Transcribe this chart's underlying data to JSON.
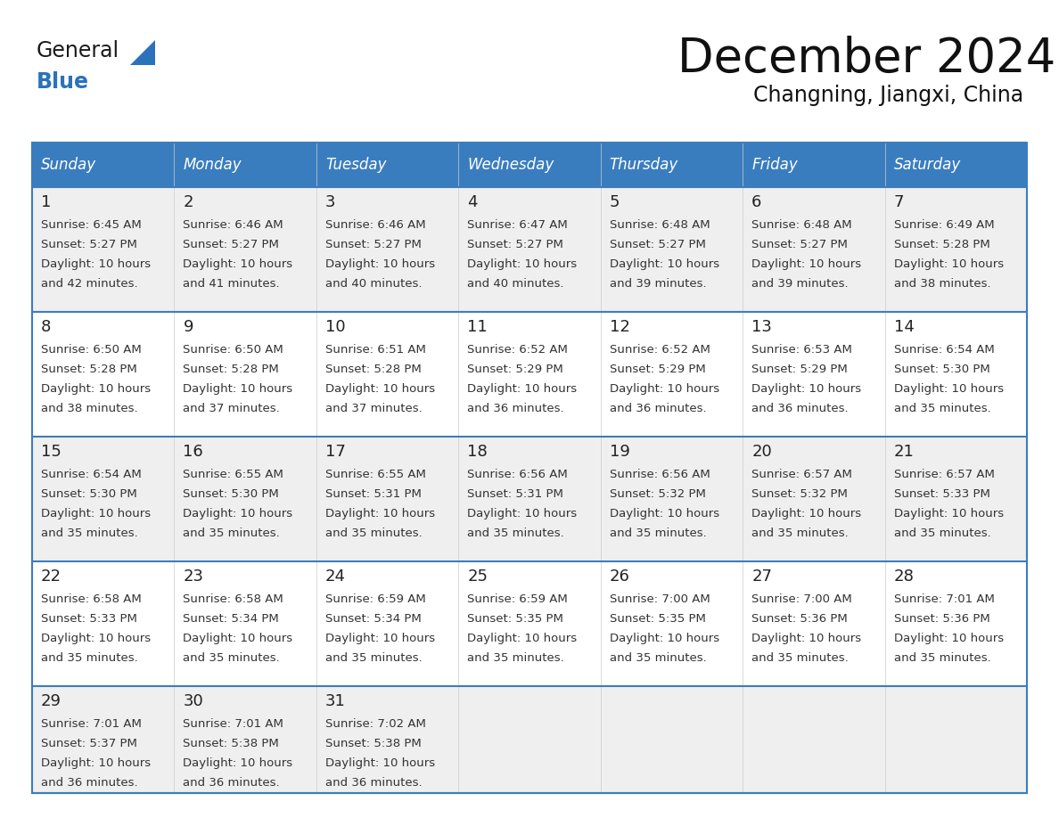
{
  "title": "December 2024",
  "subtitle": "Changning, Jiangxi, China",
  "header_bg_color": "#3A7DBF",
  "header_text_color": "#FFFFFF",
  "day_names": [
    "Sunday",
    "Monday",
    "Tuesday",
    "Wednesday",
    "Thursday",
    "Friday",
    "Saturday"
  ],
  "row_bg_odd": "#EFEFEF",
  "row_bg_even": "#FFFFFF",
  "cell_border_color": "#3A7DBF",
  "day_number_color": "#222222",
  "day_text_color": "#333333",
  "logo_general_color": "#1a1a1a",
  "logo_blue_color": "#2a72bb",
  "weeks": [
    [
      {
        "day": 1,
        "sunrise": "6:45 AM",
        "sunset": "5:27 PM",
        "daylight_line1": "10 hours",
        "daylight_line2": "and 42 minutes."
      },
      {
        "day": 2,
        "sunrise": "6:46 AM",
        "sunset": "5:27 PM",
        "daylight_line1": "10 hours",
        "daylight_line2": "and 41 minutes."
      },
      {
        "day": 3,
        "sunrise": "6:46 AM",
        "sunset": "5:27 PM",
        "daylight_line1": "10 hours",
        "daylight_line2": "and 40 minutes."
      },
      {
        "day": 4,
        "sunrise": "6:47 AM",
        "sunset": "5:27 PM",
        "daylight_line1": "10 hours",
        "daylight_line2": "and 40 minutes."
      },
      {
        "day": 5,
        "sunrise": "6:48 AM",
        "sunset": "5:27 PM",
        "daylight_line1": "10 hours",
        "daylight_line2": "and 39 minutes."
      },
      {
        "day": 6,
        "sunrise": "6:48 AM",
        "sunset": "5:27 PM",
        "daylight_line1": "10 hours",
        "daylight_line2": "and 39 minutes."
      },
      {
        "day": 7,
        "sunrise": "6:49 AM",
        "sunset": "5:28 PM",
        "daylight_line1": "10 hours",
        "daylight_line2": "and 38 minutes."
      }
    ],
    [
      {
        "day": 8,
        "sunrise": "6:50 AM",
        "sunset": "5:28 PM",
        "daylight_line1": "10 hours",
        "daylight_line2": "and 38 minutes."
      },
      {
        "day": 9,
        "sunrise": "6:50 AM",
        "sunset": "5:28 PM",
        "daylight_line1": "10 hours",
        "daylight_line2": "and 37 minutes."
      },
      {
        "day": 10,
        "sunrise": "6:51 AM",
        "sunset": "5:28 PM",
        "daylight_line1": "10 hours",
        "daylight_line2": "and 37 minutes."
      },
      {
        "day": 11,
        "sunrise": "6:52 AM",
        "sunset": "5:29 PM",
        "daylight_line1": "10 hours",
        "daylight_line2": "and 36 minutes."
      },
      {
        "day": 12,
        "sunrise": "6:52 AM",
        "sunset": "5:29 PM",
        "daylight_line1": "10 hours",
        "daylight_line2": "and 36 minutes."
      },
      {
        "day": 13,
        "sunrise": "6:53 AM",
        "sunset": "5:29 PM",
        "daylight_line1": "10 hours",
        "daylight_line2": "and 36 minutes."
      },
      {
        "day": 14,
        "sunrise": "6:54 AM",
        "sunset": "5:30 PM",
        "daylight_line1": "10 hours",
        "daylight_line2": "and 35 minutes."
      }
    ],
    [
      {
        "day": 15,
        "sunrise": "6:54 AM",
        "sunset": "5:30 PM",
        "daylight_line1": "10 hours",
        "daylight_line2": "and 35 minutes."
      },
      {
        "day": 16,
        "sunrise": "6:55 AM",
        "sunset": "5:30 PM",
        "daylight_line1": "10 hours",
        "daylight_line2": "and 35 minutes."
      },
      {
        "day": 17,
        "sunrise": "6:55 AM",
        "sunset": "5:31 PM",
        "daylight_line1": "10 hours",
        "daylight_line2": "and 35 minutes."
      },
      {
        "day": 18,
        "sunrise": "6:56 AM",
        "sunset": "5:31 PM",
        "daylight_line1": "10 hours",
        "daylight_line2": "and 35 minutes."
      },
      {
        "day": 19,
        "sunrise": "6:56 AM",
        "sunset": "5:32 PM",
        "daylight_line1": "10 hours",
        "daylight_line2": "and 35 minutes."
      },
      {
        "day": 20,
        "sunrise": "6:57 AM",
        "sunset": "5:32 PM",
        "daylight_line1": "10 hours",
        "daylight_line2": "and 35 minutes."
      },
      {
        "day": 21,
        "sunrise": "6:57 AM",
        "sunset": "5:33 PM",
        "daylight_line1": "10 hours",
        "daylight_line2": "and 35 minutes."
      }
    ],
    [
      {
        "day": 22,
        "sunrise": "6:58 AM",
        "sunset": "5:33 PM",
        "daylight_line1": "10 hours",
        "daylight_line2": "and 35 minutes."
      },
      {
        "day": 23,
        "sunrise": "6:58 AM",
        "sunset": "5:34 PM",
        "daylight_line1": "10 hours",
        "daylight_line2": "and 35 minutes."
      },
      {
        "day": 24,
        "sunrise": "6:59 AM",
        "sunset": "5:34 PM",
        "daylight_line1": "10 hours",
        "daylight_line2": "and 35 minutes."
      },
      {
        "day": 25,
        "sunrise": "6:59 AM",
        "sunset": "5:35 PM",
        "daylight_line1": "10 hours",
        "daylight_line2": "and 35 minutes."
      },
      {
        "day": 26,
        "sunrise": "7:00 AM",
        "sunset": "5:35 PM",
        "daylight_line1": "10 hours",
        "daylight_line2": "and 35 minutes."
      },
      {
        "day": 27,
        "sunrise": "7:00 AM",
        "sunset": "5:36 PM",
        "daylight_line1": "10 hours",
        "daylight_line2": "and 35 minutes."
      },
      {
        "day": 28,
        "sunrise": "7:01 AM",
        "sunset": "5:36 PM",
        "daylight_line1": "10 hours",
        "daylight_line2": "and 35 minutes."
      }
    ],
    [
      {
        "day": 29,
        "sunrise": "7:01 AM",
        "sunset": "5:37 PM",
        "daylight_line1": "10 hours",
        "daylight_line2": "and 36 minutes."
      },
      {
        "day": 30,
        "sunrise": "7:01 AM",
        "sunset": "5:38 PM",
        "daylight_line1": "10 hours",
        "daylight_line2": "and 36 minutes."
      },
      {
        "day": 31,
        "sunrise": "7:02 AM",
        "sunset": "5:38 PM",
        "daylight_line1": "10 hours",
        "daylight_line2": "and 36 minutes."
      },
      null,
      null,
      null,
      null
    ]
  ]
}
